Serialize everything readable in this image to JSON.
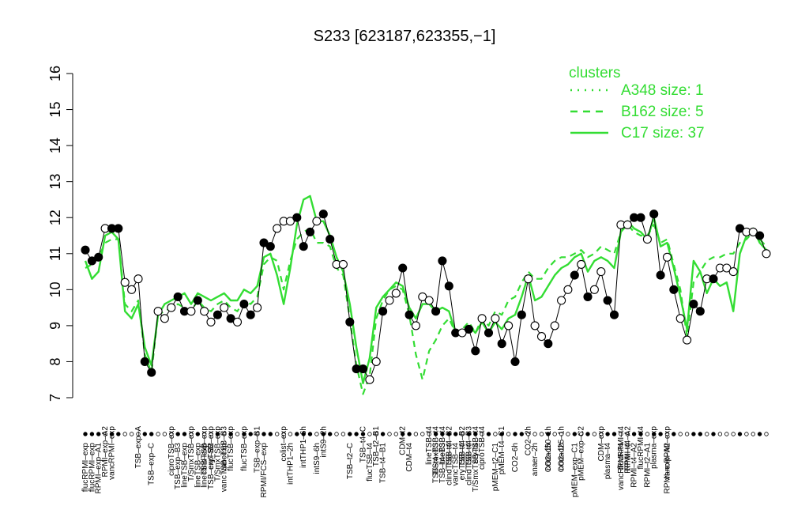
{
  "chart_data": {
    "type": "line",
    "title": "S233 [623187,623355,−1]",
    "xlabel": "",
    "ylabel": "",
    "ylim": [
      7,
      16
    ],
    "yticks": [
      7,
      8,
      9,
      10,
      11,
      12,
      13,
      14,
      15,
      16
    ],
    "grid": false,
    "legend": {
      "title": "clusters",
      "placement": "top-right",
      "color": "#33dd33",
      "entries": [
        {
          "label": "A348 size: 1",
          "style": "dotted"
        },
        {
          "label": "B162 size: 5",
          "style": "dashed"
        },
        {
          "label": "C17 size: 37",
          "style": "solid"
        }
      ]
    },
    "top_labels": [
      {
        "i": 3,
        "label": "RPMI–exp–A2"
      },
      {
        "i": 4,
        "label": "vancRPMI–exp"
      },
      {
        "i": 8,
        "label": "TSB–exp–A"
      },
      {
        "i": 13,
        "label": "ciproTSB–exp"
      },
      {
        "i": 16,
        "label": "T/SmxTSB–exp"
      },
      {
        "i": 18,
        "label": "clindTSB–exp"
      },
      {
        "i": 19,
        "label": "eryTSB–exp"
      },
      {
        "i": 20,
        "label": "T/SmxTSB–exp"
      },
      {
        "i": 21,
        "label": "vancTSB–B3"
      },
      {
        "i": 22,
        "label": "flucTSB–exp"
      },
      {
        "i": 24,
        "label": "flucTSB–exp"
      },
      {
        "i": 26,
        "label": "TSB–exp–B1"
      },
      {
        "i": 30,
        "label": "colist–exp"
      },
      {
        "i": 33,
        "label": "intTHP1–6h"
      },
      {
        "i": 36,
        "label": "intS9–2h"
      },
      {
        "i": 42,
        "label": "TSB–t4–C"
      },
      {
        "i": 44,
        "label": "TSB–t2–B1"
      },
      {
        "i": 48,
        "label": "CDM–t2"
      },
      {
        "i": 52,
        "label": "lineTSB–t4"
      },
      {
        "i": 53,
        "label": "T/SmxTSB–t4"
      },
      {
        "i": 54,
        "label": "lineTSB–t4"
      },
      {
        "i": 55,
        "label": "TSB–t4–B2"
      },
      {
        "i": 57,
        "label": "TSB–t4–B2"
      },
      {
        "i": 58,
        "label": "TSB–t4–B3"
      },
      {
        "i": 59,
        "label": "eryTSB–t4"
      },
      {
        "i": 60,
        "label": "ciproTSB–t4"
      },
      {
        "i": 63,
        "label": "pMEM–t4–C1"
      },
      {
        "i": 67,
        "label": "CO2–2h"
      },
      {
        "i": 70,
        "label": "nonad50–1h"
      },
      {
        "i": 72,
        "label": "nonad25–1h"
      },
      {
        "i": 75,
        "label": "pMEM–exp–C2"
      },
      {
        "i": 78,
        "label": "CDM–exp"
      },
      {
        "i": 81,
        "label": "flucRPMI–t4"
      },
      {
        "i": 82,
        "label": "RPMI–t4–A2"
      },
      {
        "i": 84,
        "label": "flucRPMI–t4"
      },
      {
        "i": 86,
        "label": "plasma–exp"
      },
      {
        "i": 88,
        "label": "vancRPMI–exp"
      }
    ],
    "bottom_labels": [
      {
        "i": 0,
        "label": "flucRPMI–exp"
      },
      {
        "i": 1,
        "label": "flucRPMI–exp"
      },
      {
        "i": 2,
        "label": "RPMI–exp–A1"
      },
      {
        "i": 10,
        "label": "TSB–exp–C"
      },
      {
        "i": 14,
        "label": "TSB–exp–B3"
      },
      {
        "i": 15,
        "label": "lineTSB–exp"
      },
      {
        "i": 17,
        "label": "lineTSB–exp"
      },
      {
        "i": 18,
        "label": "lineTSB–exp"
      },
      {
        "i": 19,
        "label": "TSB–exp–B2"
      },
      {
        "i": 21,
        "label": "vancTSB–exp"
      },
      {
        "i": 27,
        "label": "RPMI/FCS–exp"
      },
      {
        "i": 31,
        "label": "intTHP1–2h"
      },
      {
        "i": 35,
        "label": "intS9–6h"
      },
      {
        "i": 40,
        "label": "TSB–t2–C"
      },
      {
        "i": 43,
        "label": "flucTSB–t4"
      },
      {
        "i": 45,
        "label": "TSB–t4–B1"
      },
      {
        "i": 49,
        "label": "CDM–t4"
      },
      {
        "i": 53,
        "label": "TSB–t4–B3"
      },
      {
        "i": 54,
        "label": "TSB–t4–B3"
      },
      {
        "i": 55,
        "label": "clindTSB–t4"
      },
      {
        "i": 56,
        "label": "vancTSB–t4"
      },
      {
        "i": 57,
        "label": "eryTSB–t4"
      },
      {
        "i": 58,
        "label": "clindTSB–t4"
      },
      {
        "i": 59,
        "label": "T/SmxTSB–t4"
      },
      {
        "i": 62,
        "label": "pMEM–t2–C1"
      },
      {
        "i": 65,
        "label": "CO2–6h"
      },
      {
        "i": 68,
        "label": "anaer–2h"
      },
      {
        "i": 70,
        "label": "CO2–1h"
      },
      {
        "i": 72,
        "label": "CO2–1h"
      },
      {
        "i": 74,
        "label": "pMEM–exp–C1"
      },
      {
        "i": 79,
        "label": "plasma–t4"
      },
      {
        "i": 81,
        "label": "vancRPMI–t4"
      },
      {
        "i": 82,
        "label": "RPMI–t4"
      },
      {
        "i": 83,
        "label": "RPMI–t4–A2"
      },
      {
        "i": 85,
        "label": "RPMI–t2–A1"
      },
      {
        "i": 88,
        "label": "RPMI–exp–A2"
      }
    ],
    "series": [
      {
        "style": "points-black-line",
        "values": [
          11.1,
          10.8,
          10.9,
          11.7,
          11.7,
          11.7,
          10.2,
          10.0,
          10.3,
          8.0,
          7.7,
          9.4,
          9.2,
          9.5,
          9.8,
          9.4,
          9.4,
          9.7,
          9.4,
          9.1,
          9.3,
          9.5,
          9.2,
          9.1,
          9.6,
          9.3,
          9.5,
          11.3,
          11.2,
          11.7,
          11.9,
          11.9,
          12.0,
          11.2,
          11.6,
          11.9,
          12.1,
          11.4,
          10.7,
          10.7,
          9.1,
          7.8,
          7.8,
          7.5,
          8.0,
          9.4,
          9.7,
          9.9,
          10.6,
          9.3,
          9.0,
          9.8,
          9.7,
          9.4,
          10.8,
          10.1,
          8.8,
          8.8,
          8.9,
          8.3,
          9.2,
          8.8,
          9.2,
          8.5,
          9.0,
          8.0,
          9.3,
          10.3,
          9.0,
          8.7,
          8.5,
          9.0,
          9.7,
          10.0,
          10.4,
          10.7,
          9.8,
          10.0,
          10.5,
          9.7,
          9.3,
          11.8,
          11.8,
          12.0,
          12.0,
          11.4,
          12.1,
          10.4,
          10.9,
          10.0,
          9.2,
          8.6,
          9.6,
          9.4,
          10.3,
          10.3,
          10.6,
          10.6,
          10.5,
          11.7,
          11.6,
          11.6,
          11.5,
          11.0
        ],
        "filled": [
          1,
          1,
          1,
          0,
          1,
          1,
          0,
          0,
          0,
          1,
          1,
          0,
          0,
          0,
          1,
          1,
          0,
          1,
          0,
          0,
          1,
          0,
          1,
          0,
          1,
          1,
          0,
          1,
          1,
          0,
          0,
          0,
          1,
          1,
          1,
          0,
          1,
          1,
          0,
          0,
          1,
          1,
          1,
          0,
          0,
          1,
          0,
          0,
          1,
          1,
          0,
          0,
          0,
          1,
          1,
          1,
          1,
          0,
          1,
          1,
          0,
          1,
          0,
          1,
          0,
          1,
          1,
          0,
          0,
          0,
          1,
          0,
          0,
          0,
          1,
          0,
          1,
          0,
          0,
          1,
          1,
          0,
          0,
          1,
          1,
          0,
          1,
          1,
          0,
          1,
          0,
          0,
          1,
          1,
          0,
          1,
          0,
          0,
          0,
          1,
          0,
          0,
          1,
          0
        ]
      },
      {
        "name": "C17 size: 37",
        "style": "solid",
        "values": [
          10.8,
          10.3,
          10.5,
          11.5,
          11.6,
          11.4,
          9.4,
          9.2,
          9.6,
          8.4,
          7.9,
          9.3,
          9.6,
          9.7,
          9.8,
          9.9,
          9.6,
          9.9,
          9.8,
          9.7,
          9.8,
          9.9,
          9.7,
          9.7,
          10.0,
          9.9,
          10.1,
          10.9,
          11.0,
          10.4,
          9.6,
          10.6,
          11.8,
          12.5,
          12.6,
          11.9,
          11.9,
          11.5,
          10.9,
          10.5,
          9.6,
          8.4,
          7.4,
          8.1,
          9.5,
          9.8,
          10.0,
          10.2,
          10.1,
          9.5,
          9.2,
          9.6,
          9.6,
          9.4,
          9.5,
          9.4,
          8.8,
          8.8,
          9.0,
          8.8,
          9.1,
          8.8,
          9.1,
          8.9,
          9.2,
          9.3,
          9.8,
          10.4,
          9.7,
          9.8,
          10.1,
          10.4,
          10.6,
          10.7,
          10.9,
          11.0,
          10.5,
          10.8,
          10.9,
          10.8,
          10.6,
          11.6,
          11.9,
          11.7,
          11.6,
          11.4,
          12.0,
          11.2,
          11.3,
          10.6,
          9.8,
          8.9,
          10.8,
          10.5,
          9.9,
          10.3,
          10.1,
          10.2,
          9.4,
          11.0,
          11.5,
          11.7,
          11.3,
          11.1
        ]
      },
      {
        "name": "B162 size: 5",
        "style": "dashed",
        "values": [
          10.6,
          10.7,
          10.9,
          11.3,
          11.4,
          11.4,
          9.6,
          9.4,
          9.7,
          8.2,
          7.7,
          9.3,
          9.4,
          9.5,
          9.6,
          9.5,
          9.4,
          9.7,
          9.5,
          9.4,
          9.6,
          9.7,
          9.5,
          9.4,
          9.7,
          9.6,
          9.8,
          10.7,
          10.9,
          10.8,
          10.0,
          10.8,
          11.4,
          11.6,
          11.7,
          11.3,
          11.3,
          11.2,
          10.6,
          10.4,
          9.2,
          7.9,
          7.1,
          7.6,
          9.2,
          9.7,
          10.0,
          10.1,
          10.0,
          9.3,
          8.2,
          7.5,
          8.3,
          8.6,
          9.0,
          9.2,
          8.8,
          8.9,
          9.1,
          8.8,
          9.2,
          9.0,
          9.4,
          9.3,
          9.7,
          9.8,
          10.2,
          10.5,
          10.3,
          10.3,
          10.6,
          10.8,
          10.9,
          10.9,
          11.0,
          11.1,
          10.9,
          11.0,
          11.2,
          11.1,
          11.0,
          11.6,
          11.8,
          11.6,
          11.5,
          11.5,
          11.8,
          11.3,
          11.4,
          10.7,
          10.0,
          8.7,
          10.2,
          10.5,
          10.8,
          10.9,
          10.9,
          11.0,
          11.0,
          11.3,
          11.4,
          11.6,
          11.4,
          11.2
        ]
      }
    ]
  }
}
